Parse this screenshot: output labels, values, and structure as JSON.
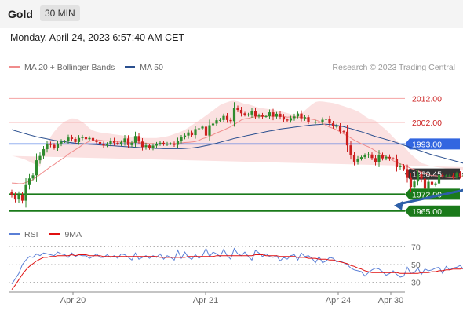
{
  "header": {
    "symbol": "Gold",
    "timeframe": "30 MIN"
  },
  "datetime": "Monday, April 24, 2023 6:57:40 AM CET",
  "legend": [
    {
      "label": "MA 20 + Bollinger Bands",
      "color": "#f08c8c"
    },
    {
      "label": "MA 50",
      "color": "#2a4f8f"
    }
  ],
  "copyright": "Research © 2023 Trading Central",
  "rsi_legend": [
    {
      "label": "RSI",
      "color": "#5a7fd6"
    },
    {
      "label": "9MA",
      "color": "#e01010"
    }
  ],
  "colors": {
    "up": "#2e8b2e",
    "down": "#cc1f1f",
    "band_fill": "#fbe1e1",
    "resistance": "#f5a3a3",
    "pivot": "#3366e0",
    "support": "#1a7a1a",
    "last": "#333333",
    "arrow": "#2d5fa8"
  },
  "chart_data": [
    {
      "type": "candlestick",
      "series": "XAU/USD 30-minute",
      "x_labels": [
        "Apr 20",
        "Apr 21",
        "Apr 24",
        "Apr 30"
      ],
      "y_range": [
        1960,
        2020
      ],
      "levels": [
        {
          "label": "2012.00",
          "value": 2012.0,
          "kind": "resistance"
        },
        {
          "label": "2002.00",
          "value": 2002.0,
          "kind": "resistance"
        },
        {
          "label": "1993.00",
          "value": 1993.0,
          "kind": "pivot"
        },
        {
          "label": "1980.45",
          "value": 1980.45,
          "kind": "last"
        },
        {
          "label": "1972.00",
          "value": 1972.0,
          "kind": "support"
        },
        {
          "label": "1965.00",
          "value": 1965.0,
          "kind": "support"
        }
      ],
      "close": [
        1971.5,
        1969.8,
        1971.7,
        1969.3,
        1975.8,
        1978.6,
        1979.9,
        1986.2,
        1988.0,
        1990.8,
        1993.0,
        1992.6,
        1991.4,
        1993.2,
        1993.9,
        1994.2,
        1995.7,
        1995.1,
        1993.8,
        1995.5,
        1995.8,
        1995.0,
        1995.5,
        1994.5,
        1993.8,
        1992.9,
        1992.3,
        1993.1,
        1994.4,
        1993.5,
        1993.0,
        1993.7,
        1995.3,
        1992.5,
        1993.5,
        1996.3,
        1994.0,
        1991.7,
        1992.4,
        1991.3,
        1992.3,
        1992.8,
        1993.5,
        1993.0,
        1993.0,
        1993.2,
        1992.6,
        1994.2,
        1995.8,
        1996.5,
        1997.8,
        1996.7,
        1999.2,
        1999.5,
        2000.2,
        1996.5,
        2000.8,
        2001.5,
        2002.9,
        2003.0,
        2004.7,
        2003.0,
        2002.5,
        2008.1,
        2007.2,
        2005.8,
        2005.1,
        2005.3,
        2006.8,
        2004.5,
        2004.9,
        2004.4,
        2004.6,
        2006.2,
        2004.4,
        2005.6,
        2004.3,
        2003.2,
        2002.8,
        2003.8,
        2004.5,
        2005.7,
        2003.7,
        2004.2,
        2002.3,
        2002.2,
        2002.2,
        2002.0,
        2003.1,
        2003.6,
        2001.6,
        2000.4,
        2000.5,
        1998.3,
        1998.1,
        1992.4,
        1988.3,
        1985.6,
        1986.7,
        1987.5,
        1988.2,
        1988.6,
        1987.1,
        1985.3,
        1988.5,
        1987.0,
        1987.6,
        1987.0,
        1986.8,
        1983.3,
        1983.8,
        1982.5,
        1978.8,
        1975.0,
        1977.3,
        1980.3,
        1978.5,
        1974.3,
        1977.2,
        1975.8,
        1976.5,
        1980.0,
        1979.7,
        1979.8,
        1979.8,
        1979.3,
        1980.6,
        1979.5,
        1980.1,
        1981.6,
        1982.6,
        1981.3,
        1983.1,
        1982.1,
        1983.7,
        1982.7,
        1983.8,
        1983.1,
        1983.6,
        1983.3,
        1983.2,
        1983.2,
        1980.7,
        1982.8,
        1982.4,
        1981.4,
        1981.5,
        1980.8,
        1980.4,
        1980.45
      ],
      "ma20": [
        1976.7,
        1976.6,
        1976.4,
        1976.5,
        1976.9,
        1977.4,
        1978.1,
        1979.1,
        1980.2,
        1981.3,
        1982.4,
        1983.5,
        1984.4,
        1985.5,
        1986.5,
        1987.5,
        1988.7,
        1989.7,
        1990.6,
        1991.5,
        1992.6,
        1993.4,
        1994.1,
        1994.4,
        1994.7,
        1994.6,
        1994.3,
        1994.3,
        1994.3,
        1994.1,
        1993.9,
        1993.8,
        1993.8,
        1993.6,
        1993.5,
        1993.6,
        1993.6,
        1993.4,
        1993.3,
        1993.2,
        1993.2,
        1993.0,
        1993.0,
        1993.1,
        1993.0,
        1993.1,
        1993.1,
        1993.3,
        1993.4,
        1993.6,
        1993.7,
        1993.8,
        1994.0,
        1994.5,
        1995.2,
        1995.6,
        1996.2,
        1996.9,
        1997.6,
        1998.2,
        1998.8,
        1999.5,
        2000.2,
        2001.1,
        2002.0,
        2003.0,
        2003.5,
        2003.7,
        2004.1,
        2004.3,
        2004.4,
        2004.5,
        2004.6,
        2004.6,
        2004.6,
        2004.7,
        2004.6,
        2004.5,
        2004.2,
        2004.3,
        2004.2,
        2004.2,
        2004.1,
        2003.9,
        2003.5,
        2003.3,
        2003.0,
        2002.5,
        2001.6,
        2000.8,
        2000.0,
        1999.5,
        1998.9,
        1998.0,
        1997.2,
        1996.4,
        1995.5,
        1994.6,
        1993.8,
        1993.1,
        1992.4,
        1991.8,
        1991.0,
        1990.1,
        1989.3,
        1988.4,
        1987.7,
        1987.0,
        1986.0,
        1985.2,
        1984.7,
        1984.2,
        1983.5,
        1982.8,
        1982.3,
        1981.8,
        1981.1,
        1980.7,
        1980.1,
        1979.8,
        1979.7,
        1979.5,
        1979.3,
        1979.1,
        1979.0,
        1979.0,
        1979.1,
        1979.3,
        1979.5,
        1979.9,
        1980.3,
        1980.6,
        1980.9,
        1981.1,
        1981.3,
        1981.4,
        1981.4,
        1981.4,
        1981.4,
        1981.3,
        1981.1,
        1981.0,
        1980.9,
        1980.8,
        1980.7,
        1980.5
      ],
      "upper_band": [
        1988.0,
        1987.7,
        1987.3,
        1986.9,
        1986.3,
        1985.6,
        1984.9,
        1984.1,
        1983.3,
        1990.2,
        1993.3,
        1996.0,
        1998.1,
        1999.8,
        2001.2,
        2002.4,
        2003.0,
        2003.7,
        2003.6,
        2003.0,
        2002.1,
        2001.0,
        1999.5,
        1998.6,
        1998.1,
        1997.8,
        1997.6,
        1997.4,
        1997.2,
        1997.0,
        1996.8,
        1996.6,
        1996.4,
        1996.2,
        1996.0,
        1995.8,
        1995.7,
        1995.6,
        1995.5,
        1995.5,
        1995.5,
        1995.5,
        1995.7,
        1995.9,
        1996.2,
        1996.6,
        1997.1,
        1997.6,
        1998.2,
        1998.9,
        1999.8,
        2000.8,
        2001.8,
        2002.8,
        2003.8,
        2004.9,
        2006.0,
        2007.0,
        2008.2,
        2009.2,
        2009.9,
        2010.4,
        2010.9,
        2011.0,
        2010.8,
        2010.2,
        2009.7,
        2009.5,
        2009.1,
        2008.6,
        2008.1,
        2007.9,
        2007.7,
        2007.5,
        2007.3,
        2007.0,
        2006.7,
        2006.3,
        2005.9,
        2005.5,
        2005.3,
        2005.2,
        2005.6,
        2007.0,
        2008.3,
        2009.5,
        2010.5,
        2010.8,
        2010.7,
        2010.5,
        2010.3,
        2010.1,
        2009.7,
        2009.2,
        2008.8,
        2008.3,
        2007.8,
        2007.2,
        2006.6,
        2005.7,
        2004.6,
        2003.7,
        2003.2,
        2002.7,
        2001.3,
        2000.1,
        1998.9,
        1997.4,
        1995.8,
        1994.4,
        1993.1,
        1992.1,
        1990.4,
        1988.8,
        1987.5,
        1986.2,
        1985.0,
        1984.6,
        1984.1,
        1983.7,
        1983.4,
        1983.2,
        1983.0,
        1982.7,
        1982.5,
        1982.3,
        1982.1,
        1981.9,
        1981.9,
        1982.2,
        1982.5,
        1982.9,
        1983.4,
        1983.9,
        1984.3,
        1984.5,
        1984.6,
        1984.6,
        1984.6,
        1984.5,
        1984.3,
        1984.1,
        1983.8,
        1983.5,
        1983.1,
        1982.7
      ],
      "lower_band": [
        1965.0,
        1965.6,
        1966.1,
        1966.8,
        1967.5,
        1968.3,
        1969.2,
        1970.2,
        1971.1,
        1972.7,
        1974.4,
        1976.1,
        1977.5,
        1979.0,
        1980.7,
        1982.2,
        1983.4,
        1984.5,
        1985.6,
        1986.7,
        1987.8,
        1988.7,
        1989.6,
        1990.6,
        1991.4,
        1992.2,
        1992.4,
        1992.1,
        1991.6,
        1991.1,
        1991.0,
        1991.0,
        1990.9,
        1990.8,
        1990.7,
        1990.6,
        1990.5,
        1990.5,
        1990.5,
        1990.6,
        1990.8,
        1991.2,
        1991.8,
        1992.4,
        1993.0,
        1993.0,
        1993.0,
        1993.0,
        1993.2,
        1993.4,
        1993.7,
        1994.1,
        1994.6,
        1995.3,
        1996.0,
        1996.8,
        1997.7,
        1998.7,
        1999.6,
        2000.5,
        2001.2,
        2001.8,
        2002.3,
        2002.7,
        2002.9,
        2003.1,
        2002.3,
        2001.4,
        2000.6,
        1999.9,
        1999.3,
        1998.8,
        1998.3,
        1997.8,
        1997.1,
        1996.1,
        1994.4,
        1992.4,
        1990.1,
        1987.7,
        1985.2,
        1983.0,
        1980.9,
        1979.0,
        1977.3,
        1975.9,
        1974.6,
        1973.6,
        1972.9,
        1972.3,
        1972.0,
        1972.0,
        1972.1,
        1972.2,
        1972.3,
        1972.4,
        1972.5,
        1972.5,
        1972.6,
        1972.7,
        1972.8,
        1973.0,
        1973.2,
        1973.4,
        1973.6,
        1973.8,
        1974.0,
        1974.3,
        1974.6,
        1975.0,
        1975.4,
        1975.8,
        1976.2,
        1976.6,
        1977.0,
        1977.3,
        1977.6,
        1977.8,
        1977.9,
        1978.0,
        1978.1,
        1978.1,
        1978.1,
        1978.0,
        1977.9,
        1977.8,
        1977.7,
        1977.6,
        1977.6,
        1977.6,
        1977.6,
        1977.7,
        1977.8,
        1977.9,
        1978.0,
        1978.1,
        1978.2,
        1978.3,
        1978.3,
        1978.4,
        1978.4,
        1978.4,
        1978.4,
        1978.4,
        1978.4,
        1978.3
      ],
      "ma50": [
        1999.0,
        1998.5,
        1998.1,
        1997.6,
        1997.2,
        1996.8,
        1996.4,
        1996.0,
        1995.7,
        1995.4,
        1995.1,
        1994.8,
        1994.5,
        1994.3,
        1994.1,
        1993.9,
        1993.7,
        1993.5,
        1993.3,
        1993.2,
        1993.1,
        1993.0,
        1992.9,
        1992.8,
        1992.7,
        1992.6,
        1992.5,
        1992.4,
        1992.3,
        1992.2,
        1992.1,
        1992.0,
        1991.9,
        1991.8,
        1991.7,
        1991.6,
        1991.5,
        1991.4,
        1991.3,
        1991.3,
        1991.2,
        1991.1,
        1991.1,
        1991.0,
        1991.0,
        1991.0,
        1991.0,
        1991.0,
        1991.0,
        1991.1,
        1991.2,
        1991.3,
        1991.5,
        1991.7,
        1992.0,
        1992.3,
        1992.6,
        1993.0,
        1993.3,
        1993.7,
        1994.1,
        1994.5,
        1994.9,
        1995.3,
        1995.6,
        1995.9,
        1996.3,
        1996.6,
        1996.9,
        1997.2,
        1997.5,
        1997.8,
        1998.1,
        1998.4,
        1998.6,
        1998.9,
        1999.2,
        1999.4,
        1999.6,
        1999.8,
        2000.0,
        2000.2,
        2000.4,
        2000.6,
        2000.8,
        2000.9,
        2001.0,
        2001.1,
        2001.2,
        2001.2,
        2001.1,
        2001.0,
        2000.8,
        2000.5,
        2000.2,
        1999.8,
        1999.4,
        1999.0,
        1998.5,
        1998.1,
        1997.6,
        1997.1,
        1996.6,
        1996.1,
        1995.7,
        1995.3,
        1994.9,
        1994.5,
        1994.0,
        1993.5,
        1993.0,
        1992.5,
        1992.0,
        1991.5,
        1991.0,
        1990.5,
        1990.0,
        1989.5,
        1989.0,
        1988.5,
        1988.1,
        1987.7,
        1987.3,
        1986.9,
        1986.5,
        1986.1,
        1985.7,
        1985.3,
        1984.9,
        1984.6,
        1984.3,
        1984.0,
        1983.7,
        1983.4,
        1983.1,
        1982.8,
        1982.5,
        1982.2,
        1981.9,
        1981.6,
        1981.3,
        1981.1,
        1980.9,
        1980.7,
        1980.6,
        1980.5
      ],
      "forecast": {
        "from": 1980.45,
        "to": 1965.0
      }
    },
    {
      "type": "line",
      "series_names": [
        "RSI",
        "9MA"
      ],
      "y_ticks": [
        "70",
        "50",
        "30"
      ],
      "y_range": [
        20,
        80
      ],
      "rsi": [
        28,
        34,
        40,
        50,
        55,
        59,
        58,
        62,
        60,
        63,
        62,
        61,
        60,
        64,
        62,
        61,
        58,
        63,
        59,
        61,
        60,
        60,
        57,
        59,
        62,
        58,
        58,
        61,
        58,
        60,
        57,
        62,
        61,
        58,
        55,
        63,
        56,
        58,
        60,
        57,
        60,
        58,
        62,
        56,
        60,
        58,
        55,
        66,
        57,
        64,
        58,
        56,
        61,
        57,
        60,
        68,
        59,
        64,
        62,
        59,
        67,
        60,
        56,
        68,
        62,
        60,
        64,
        59,
        55,
        66,
        63,
        59,
        62,
        59,
        58,
        60,
        54,
        58,
        56,
        60,
        61,
        55,
        63,
        59,
        60,
        57,
        52,
        59,
        52,
        54,
        58,
        57,
        53,
        54,
        52,
        50,
        46,
        44,
        43,
        42,
        37,
        41,
        44,
        46,
        45,
        42,
        38,
        40,
        43,
        39,
        36,
        37,
        47,
        40,
        41,
        46,
        39,
        45,
        43,
        44,
        46,
        47,
        40,
        48,
        44,
        46,
        47,
        49,
        44,
        48,
        45,
        52,
        50,
        49,
        52,
        50,
        48,
        51,
        52,
        50,
        45,
        47,
        49,
        44,
        48,
        48,
        47,
        46
      ],
      "rsi_ma": [
        22,
        27,
        33,
        39,
        44,
        48,
        51,
        54,
        56,
        58,
        58,
        59,
        59,
        60,
        60,
        60,
        60,
        61,
        60,
        61,
        61,
        61,
        60,
        60,
        60,
        60,
        59,
        59,
        59,
        59,
        59,
        59,
        59,
        59,
        59,
        59,
        59,
        59,
        59,
        59,
        59,
        59,
        58,
        58,
        58,
        58,
        58,
        58,
        58,
        58,
        59,
        59,
        59,
        59,
        59,
        59,
        59,
        59,
        60,
        60,
        60,
        60,
        60,
        60,
        60,
        60,
        60,
        60,
        60,
        61,
        61,
        61,
        60,
        60,
        60,
        60,
        59,
        59,
        59,
        59,
        59,
        58,
        58,
        58,
        57,
        57,
        57,
        56,
        56,
        56,
        55,
        55,
        54,
        53,
        52,
        51,
        49,
        48,
        46,
        45,
        43,
        42,
        41,
        41,
        41,
        41,
        41,
        41,
        41,
        41,
        40,
        40,
        40,
        40,
        40,
        40,
        41,
        41,
        41,
        42,
        42,
        43,
        43,
        44,
        44,
        45,
        45,
        45,
        46,
        46,
        46,
        47,
        47,
        48,
        48,
        49,
        49,
        49,
        50,
        50,
        50,
        49,
        49,
        48,
        48,
        47,
        47,
        46
      ],
      "x_labels": [
        "Apr 20",
        "Apr 21",
        "Apr 24",
        "Apr 30"
      ]
    }
  ]
}
